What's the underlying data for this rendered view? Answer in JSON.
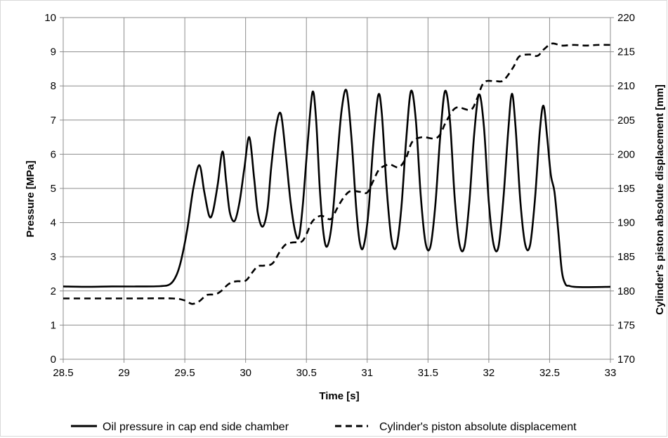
{
  "chart_data": {
    "type": "line",
    "title": "",
    "xlabel": "Time [s]",
    "ylabel": "Pressure [MPa]",
    "y2label": "Cylinder's piston absolute displacement [mm]",
    "xlim": [
      28.5,
      33
    ],
    "ylim": [
      0,
      10
    ],
    "y2lim": [
      170,
      220
    ],
    "xticks": [
      "28.5",
      "29",
      "29.5",
      "30",
      "30.5",
      "31",
      "31.5",
      "32",
      "32.5",
      "33"
    ],
    "yticks": [
      "0",
      "1",
      "2",
      "3",
      "4",
      "5",
      "6",
      "7",
      "8",
      "9",
      "10"
    ],
    "y2ticks": [
      "170",
      "175",
      "180",
      "185",
      "190",
      "195",
      "200",
      "205",
      "210",
      "215",
      "220"
    ],
    "grid": true,
    "legend_position": "bottom",
    "series": [
      {
        "name": "Oil pressure in cap end side chamber",
        "axis": "left",
        "style": "solid",
        "color": "#000000",
        "x": [
          28.5,
          28.7,
          28.9,
          29.1,
          29.3,
          29.38,
          29.43,
          29.47,
          29.52,
          29.57,
          29.62,
          29.66,
          29.7,
          29.73,
          29.77,
          29.81,
          29.84,
          29.87,
          29.91,
          29.95,
          29.99,
          30.03,
          30.07,
          30.1,
          30.14,
          30.18,
          30.21,
          30.25,
          30.29,
          30.33,
          30.37,
          30.41,
          30.44,
          30.47,
          30.51,
          30.55,
          30.58,
          30.61,
          30.64,
          30.67,
          30.71,
          30.75,
          30.79,
          30.83,
          30.87,
          30.91,
          30.94,
          30.97,
          31.01,
          31.05,
          31.09,
          31.12,
          31.16,
          31.2,
          31.24,
          31.28,
          31.32,
          31.36,
          31.4,
          31.44,
          31.48,
          31.52,
          31.56,
          31.6,
          31.64,
          31.68,
          31.72,
          31.76,
          31.8,
          31.84,
          31.88,
          31.92,
          31.96,
          32.0,
          32.04,
          32.08,
          32.12,
          32.16,
          32.19,
          32.22,
          32.26,
          32.3,
          32.34,
          32.38,
          32.42,
          32.45,
          32.48,
          32.51,
          32.54,
          32.57,
          32.6,
          32.63,
          32.66,
          32.7,
          32.8,
          33.0
        ],
        "values": [
          2.13,
          2.12,
          2.13,
          2.13,
          2.14,
          2.2,
          2.45,
          2.9,
          3.8,
          5.0,
          5.68,
          4.9,
          4.2,
          4.3,
          5.1,
          6.08,
          5.2,
          4.3,
          4.05,
          4.6,
          5.6,
          6.5,
          5.3,
          4.3,
          3.88,
          4.4,
          5.6,
          6.8,
          7.18,
          6.0,
          4.6,
          3.7,
          3.6,
          4.5,
          6.3,
          7.82,
          7.0,
          5.0,
          3.7,
          3.3,
          4.0,
          5.7,
          7.3,
          7.86,
          6.5,
          4.4,
          3.4,
          3.3,
          4.3,
          6.3,
          7.72,
          7.2,
          5.0,
          3.5,
          3.3,
          4.4,
          6.4,
          7.85,
          7.0,
          4.8,
          3.4,
          3.3,
          4.5,
          6.5,
          7.85,
          7.0,
          4.7,
          3.35,
          3.3,
          4.6,
          6.6,
          7.75,
          6.8,
          4.6,
          3.35,
          3.3,
          4.7,
          6.7,
          7.77,
          6.8,
          4.6,
          3.35,
          3.35,
          4.7,
          6.7,
          7.42,
          6.5,
          5.4,
          4.9,
          3.8,
          2.6,
          2.2,
          2.15,
          2.12,
          2.11,
          2.12
        ]
      },
      {
        "name": "Cylinder's piston absolute displacement",
        "axis": "right",
        "style": "dashed",
        "color": "#000000",
        "x": [
          28.5,
          28.8,
          29.1,
          29.4,
          29.5,
          29.56,
          29.62,
          29.68,
          29.75,
          29.8,
          29.86,
          29.92,
          30.0,
          30.05,
          30.1,
          30.15,
          30.22,
          30.28,
          30.33,
          30.39,
          30.46,
          30.5,
          30.55,
          30.62,
          30.7,
          30.75,
          30.8,
          30.86,
          30.94,
          31.0,
          31.05,
          31.1,
          31.18,
          31.26,
          31.32,
          31.37,
          31.45,
          31.55,
          31.6,
          31.65,
          31.73,
          31.85,
          31.9,
          31.96,
          32.05,
          32.12,
          32.2,
          32.25,
          32.33,
          32.4,
          32.45,
          32.52,
          32.6,
          32.7,
          32.8,
          32.9,
          33.0
        ],
        "values": [
          178.9,
          178.9,
          178.9,
          178.9,
          178.6,
          178.1,
          178.5,
          179.4,
          179.5,
          180.0,
          181.0,
          181.4,
          181.5,
          182.6,
          183.6,
          183.7,
          184.0,
          185.7,
          186.8,
          187.1,
          187.2,
          188.3,
          190.2,
          191.0,
          190.5,
          192.0,
          193.5,
          194.6,
          194.5,
          194.4,
          196.1,
          197.8,
          198.5,
          198.1,
          199.5,
          201.8,
          202.5,
          202.3,
          202.9,
          204.8,
          206.8,
          206.5,
          208.0,
          210.5,
          210.7,
          210.8,
          212.7,
          214.3,
          214.6,
          214.4,
          215.3,
          216.2,
          215.9,
          216.0,
          215.9,
          216.0,
          216.0
        ]
      }
    ]
  }
}
